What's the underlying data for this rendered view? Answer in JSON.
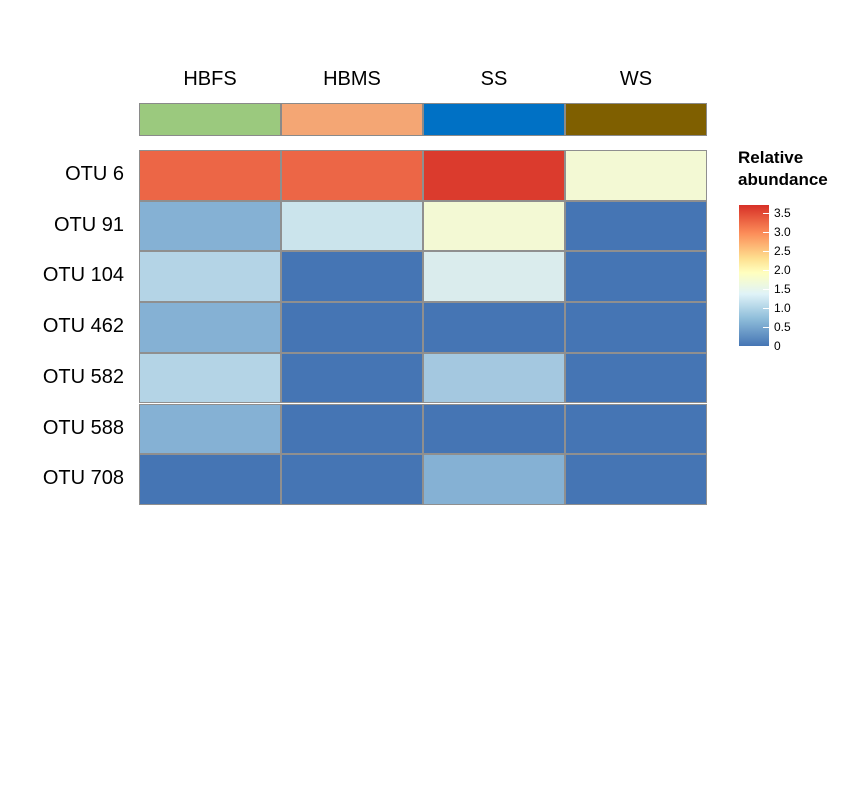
{
  "chart_data": {
    "type": "heatmap",
    "columns": [
      "HBFS",
      "HBMS",
      "SS",
      "WS"
    ],
    "column_colors": [
      "#9bc97e",
      "#f4a674",
      "#0071c5",
      "#7f5f00"
    ],
    "rows": [
      "OTU 6",
      "OTU 91",
      "OTU 104",
      "OTU 462",
      "OTU 582",
      "OTU 588",
      "OTU 708"
    ],
    "values": [
      [
        3.2,
        3.2,
        3.6,
        1.9
      ],
      [
        0.6,
        1.1,
        1.9,
        0.0
      ],
      [
        0.9,
        0.0,
        1.3,
        0.0
      ],
      [
        0.6,
        0.0,
        0.0,
        0.0
      ],
      [
        0.9,
        0.0,
        0.8,
        0.0
      ],
      [
        0.6,
        0.0,
        0.0,
        0.0
      ],
      [
        0.0,
        0.0,
        0.6,
        0.0
      ]
    ],
    "legend": {
      "title_line1": "Relative",
      "title_line2": "abundance",
      "ticks": [
        "3.5",
        "3.0",
        "2.5",
        "2.0",
        "1.5",
        "1.0",
        "0.5",
        "0"
      ],
      "tick_values": [
        3.5,
        3.0,
        2.5,
        2.0,
        1.5,
        1.0,
        0.5,
        0
      ],
      "range": [
        0,
        3.7
      ],
      "placement": "right"
    },
    "colorscale": [
      "#4575b4",
      "#91bfdb",
      "#e0f3f8",
      "#ffffbf",
      "#fee090",
      "#fc8d59",
      "#d73027"
    ]
  }
}
